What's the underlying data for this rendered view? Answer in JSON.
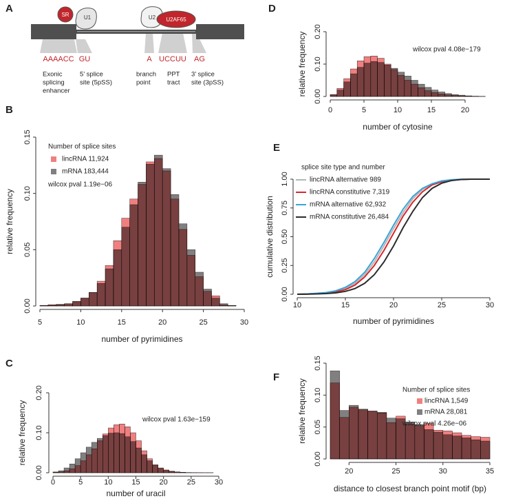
{
  "panel_a": {
    "panel": "A",
    "proteins": [
      "SR",
      "U1",
      "U2",
      "U2AF65"
    ],
    "motifs": [
      "AAAACC",
      "GU",
      "A",
      "UCCUU",
      "AG"
    ],
    "descriptions": [
      [
        "Exonic",
        "splicing",
        "enhancer"
      ],
      [
        "5’ splice",
        "site (5pSS)"
      ],
      [
        "branch",
        "point"
      ],
      [
        "PPT",
        "tract"
      ],
      [
        "3’ splice",
        "site (3pSS)"
      ]
    ]
  },
  "chart_data": [
    {
      "type": "histogram",
      "panel": "B",
      "xlabel": "number of pyrimidines",
      "ylabel": "relative frequency",
      "bins": [
        5,
        6,
        7,
        8,
        9,
        10,
        11,
        12,
        13,
        14,
        15,
        16,
        17,
        18,
        19,
        20,
        21,
        22,
        23,
        24,
        25,
        26,
        27,
        28,
        29
      ],
      "series": [
        {
          "name": "lincRNA 11,924",
          "color": "#f08080",
          "values": [
            0.0005,
            0.001,
            0.001,
            0.002,
            0.004,
            0.007,
            0.012,
            0.022,
            0.036,
            0.058,
            0.078,
            0.095,
            0.108,
            0.128,
            0.131,
            0.12,
            0.095,
            0.068,
            0.045,
            0.026,
            0.013,
            0.009,
            0.001,
            0.0003
          ]
        },
        {
          "name": "mRNA 183,444",
          "color": "#808080",
          "values": [
            0.0005,
            0.001,
            0.0015,
            0.002,
            0.004,
            0.007,
            0.012,
            0.02,
            0.033,
            0.05,
            0.07,
            0.09,
            0.11,
            0.126,
            0.134,
            0.122,
            0.099,
            0.073,
            0.05,
            0.03,
            0.015,
            0.007,
            0.002,
            0.0005
          ]
        }
      ],
      "legend_title": "Number of splice sites",
      "annotation": "wilcox pval 1.19e−06",
      "xlim": [
        5,
        30
      ],
      "xticks": [
        5,
        10,
        15,
        20,
        25,
        30
      ],
      "ylim": [
        0,
        0.15
      ],
      "yticks": [
        {
          "value": 0,
          "label": "0.00"
        },
        {
          "value": 0.05,
          "label": "0.05"
        },
        {
          "value": 0.1,
          "label": "0.10"
        },
        {
          "value": 0.15,
          "label": "0.15"
        }
      ]
    },
    {
      "type": "histogram",
      "panel": "C",
      "xlabel": "number of uracil",
      "ylabel": "relative frequency",
      "bins": [
        0,
        1,
        2,
        3,
        4,
        5,
        6,
        7,
        8,
        9,
        10,
        11,
        12,
        13,
        14,
        15,
        16,
        17,
        18,
        19,
        20,
        21,
        22,
        23,
        24,
        25,
        26,
        27,
        28,
        29
      ],
      "series": [
        {
          "color": "#f08080",
          "values": [
            0.001,
            0.002,
            0.005,
            0.01,
            0.018,
            0.03,
            0.045,
            0.06,
            0.08,
            0.097,
            0.112,
            0.12,
            0.122,
            0.115,
            0.1,
            0.08,
            0.055,
            0.035,
            0.02,
            0.012,
            0.007,
            0.004,
            0.002,
            0.001,
            0.0005,
            0.0003,
            0.0002,
            0.0001,
            0.0001
          ]
        },
        {
          "color": "#808080",
          "values": [
            0.002,
            0.005,
            0.012,
            0.022,
            0.035,
            0.05,
            0.064,
            0.076,
            0.086,
            0.093,
            0.099,
            0.1,
            0.098,
            0.09,
            0.078,
            0.062,
            0.045,
            0.03,
            0.019,
            0.011,
            0.006,
            0.003,
            0.002,
            0.001,
            0.0005,
            0.0003,
            0.0002,
            0.0001,
            0.0001
          ]
        }
      ],
      "annotation": "wilcox pval 1.63e−159",
      "xlim": [
        0,
        30
      ],
      "xticks": [
        0,
        5,
        10,
        15,
        20,
        25,
        30
      ],
      "ylim": [
        0,
        0.2
      ],
      "yticks": [
        {
          "value": 0,
          "label": "0.00"
        },
        {
          "value": 0.1,
          "label": "0.10"
        },
        {
          "value": 0.2,
          "label": "0.20"
        }
      ]
    },
    {
      "type": "histogram",
      "panel": "D",
      "xlabel": "number of cytosine",
      "ylabel": "relative frequency",
      "bins": [
        0,
        1,
        2,
        3,
        4,
        5,
        6,
        7,
        8,
        9,
        10,
        11,
        12,
        13,
        14,
        15,
        16,
        17,
        18,
        19,
        20,
        21,
        22,
        23
      ],
      "series": [
        {
          "color": "#f08080",
          "values": [
            0.006,
            0.025,
            0.055,
            0.085,
            0.11,
            0.123,
            0.125,
            0.118,
            0.1,
            0.083,
            0.065,
            0.05,
            0.038,
            0.027,
            0.018,
            0.012,
            0.008,
            0.005,
            0.003,
            0.002,
            0.001,
            0.0005,
            0.0003
          ]
        },
        {
          "color": "#808080",
          "values": [
            0.005,
            0.02,
            0.045,
            0.07,
            0.09,
            0.103,
            0.108,
            0.105,
            0.097,
            0.087,
            0.075,
            0.063,
            0.05,
            0.038,
            0.028,
            0.02,
            0.014,
            0.009,
            0.006,
            0.004,
            0.002,
            0.001,
            0.0005
          ]
        }
      ],
      "annotation": "wilcox pval 4.08e−179",
      "xlim": [
        0,
        25
      ],
      "xticks": [
        0,
        5,
        10,
        15,
        20
      ],
      "ylim": [
        0,
        0.2
      ],
      "yticks": [
        {
          "value": 0,
          "label": "0.00"
        },
        {
          "value": 0.1,
          "label": "0.10"
        },
        {
          "value": 0.2,
          "label": "0.20"
        }
      ]
    },
    {
      "type": "line",
      "panel": "E",
      "xlabel": "number of pyrimidines",
      "ylabel": "cumulative distribution",
      "x": [
        10,
        11,
        12,
        13,
        14,
        15,
        16,
        17,
        18,
        19,
        20,
        21,
        22,
        23,
        24,
        25,
        26,
        27,
        28,
        29,
        30
      ],
      "series": [
        {
          "name": "lincRNA alternative 989",
          "color": "#b5b5b5",
          "values": [
            0,
            0.002,
            0.006,
            0.012,
            0.025,
            0.05,
            0.095,
            0.17,
            0.28,
            0.42,
            0.57,
            0.71,
            0.83,
            0.91,
            0.955,
            0.98,
            0.993,
            0.998,
            1,
            1,
            1
          ]
        },
        {
          "name": "lincRNA constitutive 7,319",
          "color": "#d7262b",
          "values": [
            0,
            0.002,
            0.005,
            0.01,
            0.02,
            0.04,
            0.08,
            0.15,
            0.25,
            0.38,
            0.53,
            0.68,
            0.8,
            0.89,
            0.95,
            0.978,
            0.992,
            0.998,
            1,
            1,
            1
          ]
        },
        {
          "name": "mRNA alternative 62,932",
          "color": "#39a3d8",
          "values": [
            0,
            0.003,
            0.008,
            0.015,
            0.03,
            0.06,
            0.11,
            0.19,
            0.31,
            0.45,
            0.6,
            0.74,
            0.85,
            0.92,
            0.96,
            0.985,
            0.995,
            0.999,
            1,
            1,
            1
          ]
        },
        {
          "name": "mRNA constitutive 26,484",
          "color": "#2b2b2b",
          "values": [
            0,
            0.001,
            0.003,
            0.006,
            0.012,
            0.025,
            0.05,
            0.095,
            0.17,
            0.28,
            0.42,
            0.58,
            0.72,
            0.84,
            0.92,
            0.965,
            0.988,
            0.997,
            1,
            1,
            1
          ]
        }
      ],
      "legend_title": "splice site type and number",
      "xlim": [
        10,
        30
      ],
      "xticks": [
        10,
        15,
        20,
        25,
        30
      ],
      "ylim": [
        0,
        1
      ],
      "yticks": [
        {
          "value": 0,
          "label": "0.00"
        },
        0.25,
        {
          "value": 0.5,
          "label": "0.50"
        },
        0.75,
        {
          "value": 1,
          "label": "1.00"
        }
      ]
    },
    {
      "type": "histogram",
      "panel": "F",
      "xlabel": "distance to closest branch point motif (bp)",
      "ylabel": "relative frequency",
      "bins": [
        18,
        19,
        20,
        21,
        22,
        23,
        24,
        25,
        26,
        27,
        28,
        29,
        30,
        31,
        32,
        33,
        34,
        35
      ],
      "series": [
        {
          "name": "lincRNA 1,549",
          "color": "#f08080",
          "values": [
            0.119,
            0.065,
            0.081,
            0.077,
            0.075,
            0.072,
            0.057,
            0.067,
            0.055,
            0.052,
            0.056,
            0.045,
            0.044,
            0.041,
            0.037,
            0.035,
            0.034
          ]
        },
        {
          "name": "mRNA 28,081",
          "color": "#808080",
          "values": [
            0.138,
            0.076,
            0.084,
            0.078,
            0.075,
            0.073,
            0.064,
            0.063,
            0.058,
            0.054,
            0.046,
            0.042,
            0.038,
            0.036,
            0.033,
            0.03,
            0.028
          ]
        }
      ],
      "legend_title": "Number of splice sites",
      "annotation": "wilcox pval 4.26e−06",
      "xlim": [
        18,
        35
      ],
      "xticks": [
        20,
        25,
        30,
        35
      ],
      "ylim": [
        0,
        0.15
      ],
      "yticks": [
        {
          "value": 0,
          "label": "0.00"
        },
        {
          "value": 0.05,
          "label": "0.05"
        },
        {
          "value": 0.1,
          "label": "0.10"
        },
        {
          "value": 0.15,
          "label": "0.15"
        }
      ]
    }
  ]
}
